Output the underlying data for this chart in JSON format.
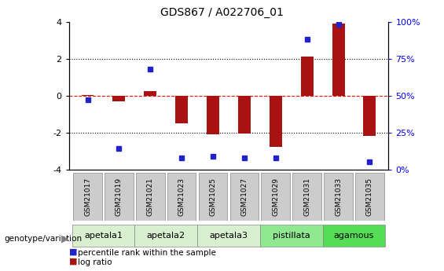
{
  "title": "GDS867 / A022706_01",
  "samples": [
    "GSM21017",
    "GSM21019",
    "GSM21021",
    "GSM21023",
    "GSM21025",
    "GSM21027",
    "GSM21029",
    "GSM21031",
    "GSM21033",
    "GSM21035"
  ],
  "log_ratio": [
    0.02,
    -0.3,
    0.25,
    -1.5,
    -2.1,
    -2.05,
    -2.8,
    2.1,
    3.9,
    -2.2
  ],
  "percentile_rank": [
    47,
    14,
    68,
    8,
    9,
    8,
    8,
    88,
    98,
    5
  ],
  "groups": [
    {
      "name": "apetala1",
      "samples": [
        0,
        1
      ],
      "color": "#d8f0d0"
    },
    {
      "name": "apetala2",
      "samples": [
        2,
        3
      ],
      "color": "#d8f0d0"
    },
    {
      "name": "apetala3",
      "samples": [
        4,
        5
      ],
      "color": "#d8f0d0"
    },
    {
      "name": "pistillata",
      "samples": [
        6,
        7
      ],
      "color": "#90e890"
    },
    {
      "name": "agamous",
      "samples": [
        8,
        9
      ],
      "color": "#55dd55"
    }
  ],
  "ylim": [
    -4,
    4
  ],
  "y2lim": [
    0,
    100
  ],
  "yticks": [
    -4,
    -2,
    0,
    2,
    4
  ],
  "y2ticks": [
    0,
    25,
    50,
    75,
    100
  ],
  "y2ticklabels": [
    "0%",
    "25%",
    "50%",
    "75%",
    "100%"
  ],
  "bar_color": "#aa1111",
  "dot_color": "#2222cc",
  "bg_color": "#ffffff",
  "plot_bg_color": "#ffffff",
  "sample_box_color": "#cccccc",
  "genotype_label": "genotype/variation"
}
